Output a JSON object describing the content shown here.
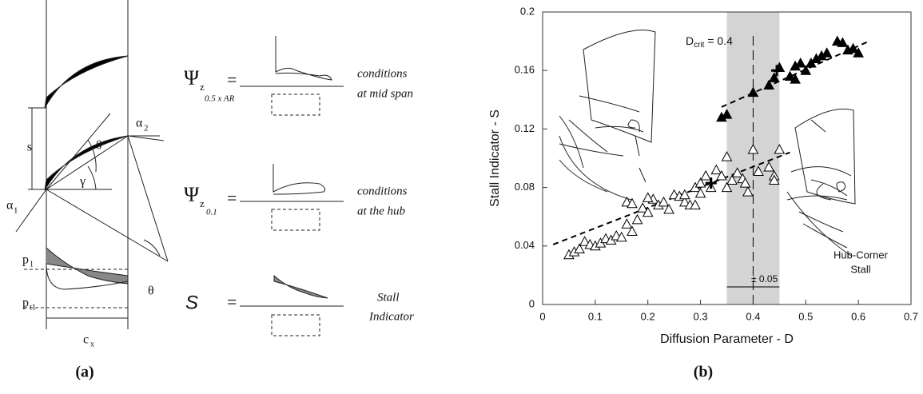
{
  "panel_a": {
    "symbols": {
      "s": "s",
      "theta1": "θ",
      "alpha2": "α",
      "alpha2_sub": "2",
      "gamma": "γ",
      "alpha1": "α",
      "alpha1_sub": "1",
      "theta2": "θ",
      "p1": "p",
      "p1_sub": "1",
      "pt1": "p",
      "pt1_sub": "t1",
      "cx": "c",
      "cx_sub": "x"
    },
    "rows": [
      {
        "lhs": "Ψ",
        "sub": "z",
        "subsub": "0.5 x AR",
        "eq": "=",
        "caption": [
          "conditions",
          "at mid span"
        ]
      },
      {
        "lhs": "Ψ",
        "sub": "z",
        "subsub": "0.1",
        "eq": "=",
        "caption": [
          "conditions",
          "at the hub"
        ]
      },
      {
        "lhs": "S",
        "eq": "=",
        "caption": [
          "Stall",
          "Indicator"
        ]
      }
    ],
    "label": "(a)"
  },
  "panel_b_label": "(b)",
  "chart_data": {
    "type": "scatter",
    "x_label": "Diffusion Parameter - D",
    "y_label": "Stall Indicator - S",
    "xlim": [
      0,
      0.7
    ],
    "ylim": [
      0,
      0.2
    ],
    "xticks": [
      0,
      0.1,
      0.2,
      0.3,
      0.4,
      0.5,
      0.6,
      0.7
    ],
    "yticks": [
      0,
      0.04,
      0.08,
      0.12,
      0.16,
      0.2
    ],
    "band": [
      0.35,
      0.45
    ],
    "band_color": "#d4d4d4",
    "crit_x": 0.4,
    "crit_label": {
      "main": "D",
      "sub": "crit",
      "rest": " = 0.4"
    },
    "band_label": "± 0.05",
    "stall_label": [
      "Hub-Corner",
      "Stall"
    ],
    "series": [
      {
        "marker": "triangle-open",
        "color": "#000000",
        "x": [
          0.05,
          0.06,
          0.07,
          0.08,
          0.09,
          0.1,
          0.11,
          0.12,
          0.13,
          0.14,
          0.15,
          0.16,
          0.17,
          0.18,
          0.19,
          0.2,
          0.21,
          0.22,
          0.23,
          0.24,
          0.25,
          0.26,
          0.27,
          0.28,
          0.29,
          0.3,
          0.31,
          0.32,
          0.33,
          0.34,
          0.35,
          0.36,
          0.37,
          0.38,
          0.39,
          0.4,
          0.41,
          0.43,
          0.44,
          0.45,
          0.44,
          0.16,
          0.17,
          0.2,
          0.27,
          0.29,
          0.3,
          0.35,
          0.385
        ],
        "values": [
          0.034,
          0.036,
          0.038,
          0.043,
          0.041,
          0.04,
          0.042,
          0.045,
          0.044,
          0.047,
          0.046,
          0.055,
          0.05,
          0.058,
          0.066,
          0.063,
          0.072,
          0.068,
          0.07,
          0.065,
          0.075,
          0.074,
          0.07,
          0.068,
          0.08,
          0.083,
          0.088,
          0.08,
          0.092,
          0.088,
          0.101,
          0.085,
          0.09,
          0.086,
          0.077,
          0.106,
          0.091,
          0.094,
          0.088,
          0.106,
          0.085,
          0.07,
          0.069,
          0.073,
          0.075,
          0.068,
          0.076,
          0.08,
          0.083
        ]
      },
      {
        "marker": "triangle-filled",
        "color": "#000000",
        "x": [
          0.34,
          0.35,
          0.4,
          0.43,
          0.44,
          0.45,
          0.47,
          0.48,
          0.48,
          0.49,
          0.5,
          0.51,
          0.52,
          0.53,
          0.54,
          0.56,
          0.57,
          0.59,
          0.6,
          0.58
        ],
        "values": [
          0.128,
          0.13,
          0.145,
          0.15,
          0.155,
          0.162,
          0.156,
          0.154,
          0.163,
          0.165,
          0.16,
          0.165,
          0.168,
          0.17,
          0.172,
          0.18,
          0.179,
          0.175,
          0.172,
          0.174
        ]
      },
      {
        "marker": "cross",
        "color": "#000000",
        "x": [
          0.32,
          0.445
        ],
        "values": [
          0.083,
          0.16
        ]
      }
    ],
    "fits": [
      {
        "x": [
          0.02,
          0.47
        ],
        "y": [
          0.041,
          0.104
        ]
      },
      {
        "x": [
          0.34,
          0.62
        ],
        "y": [
          0.135,
          0.18
        ]
      }
    ]
  }
}
